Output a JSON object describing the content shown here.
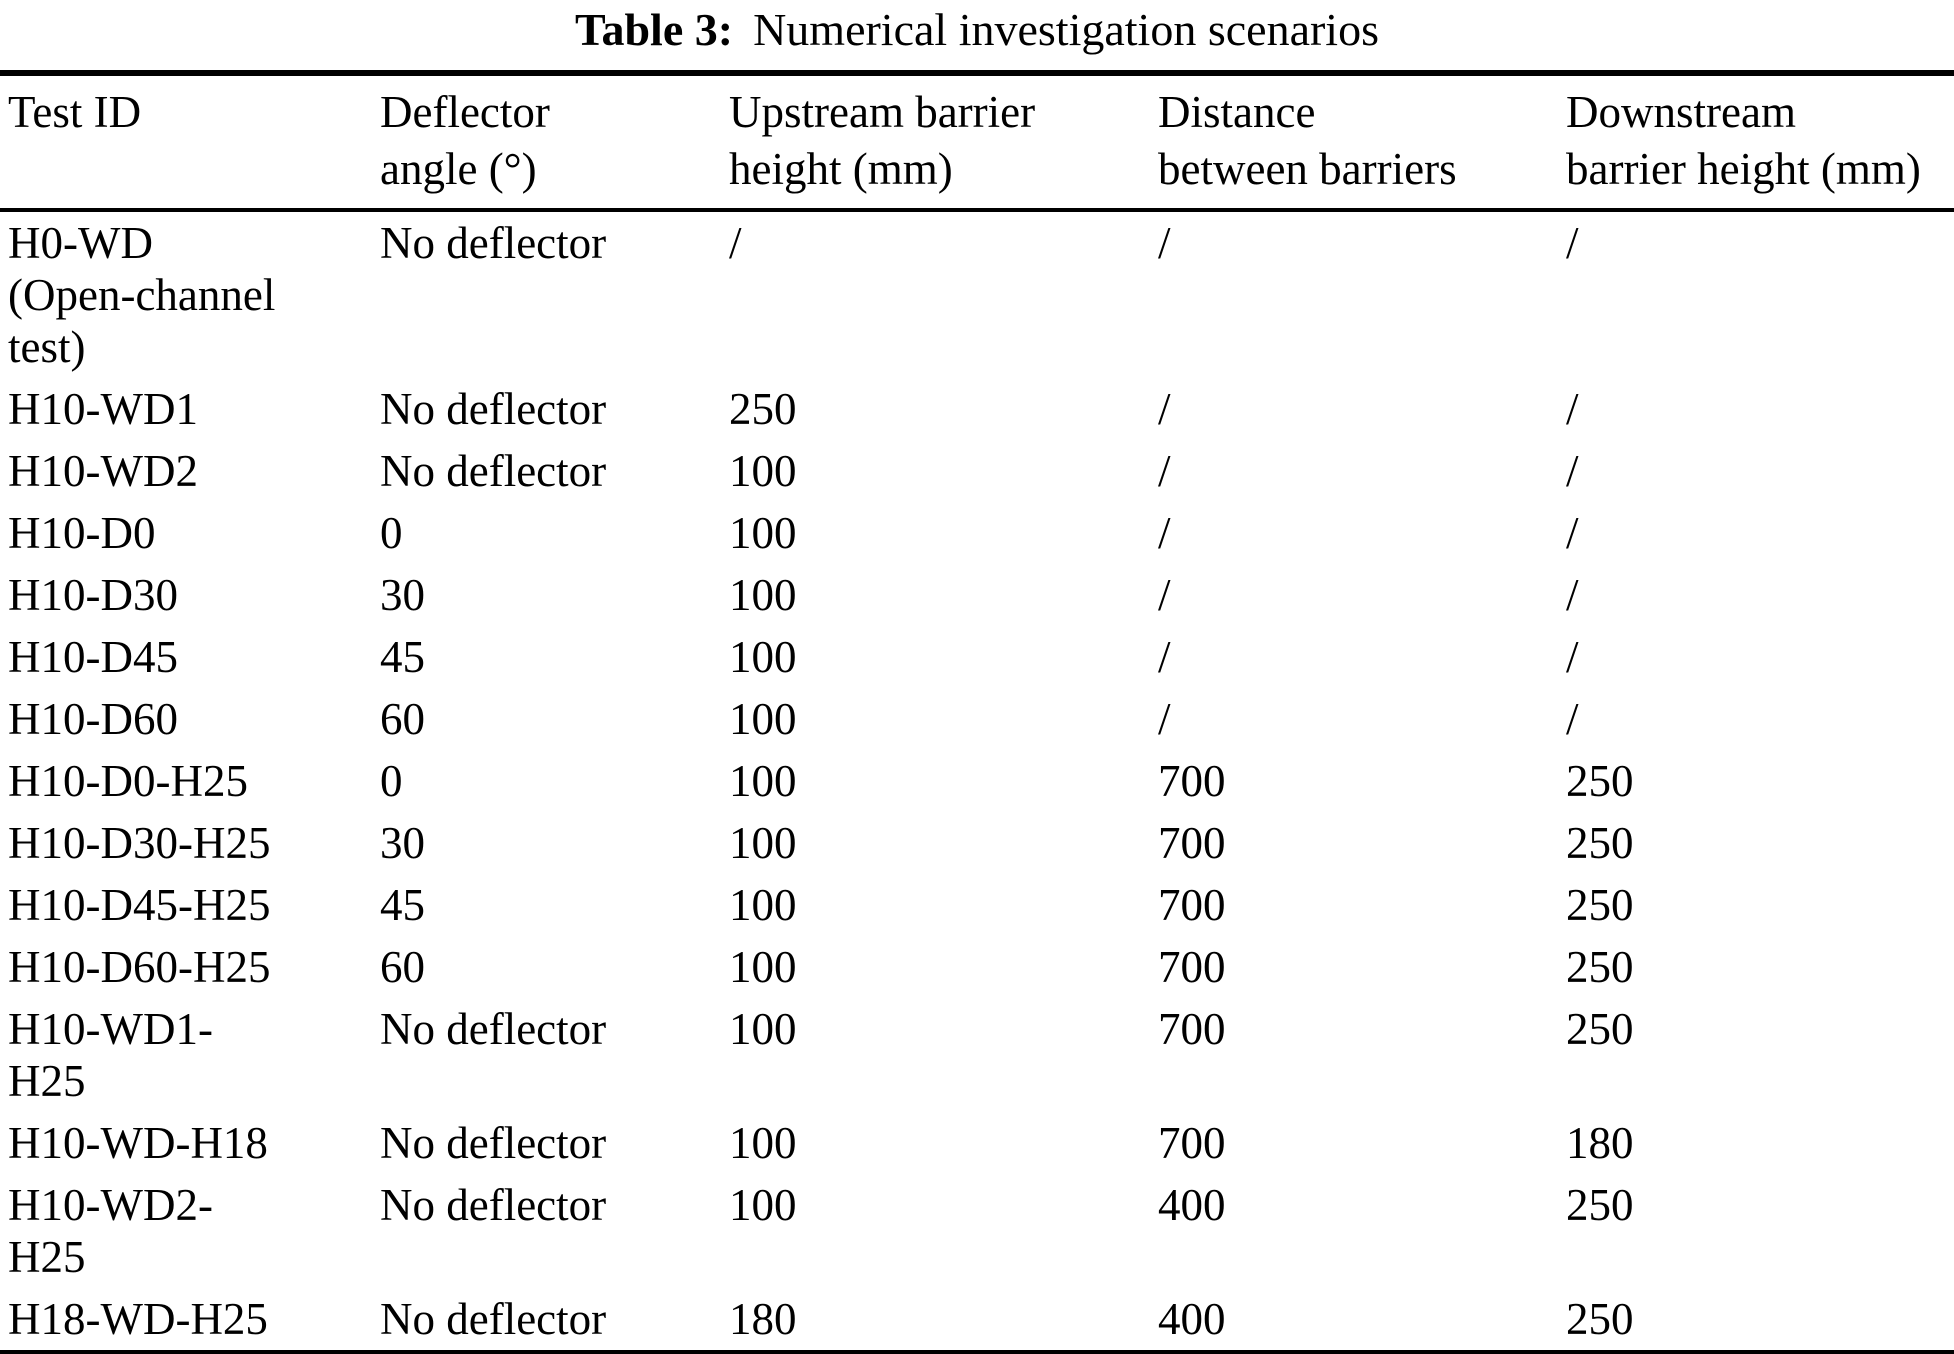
{
  "caption": {
    "label": "Table 3:",
    "text": "Numerical investigation scenarios"
  },
  "table": {
    "columns": [
      {
        "label": "Test ID"
      },
      {
        "label": "Deflector\nangle (°)"
      },
      {
        "label": "Upstream barrier\nheight (mm)"
      },
      {
        "label": "Distance\nbetween barriers"
      },
      {
        "label": "Downstream\nbarrier height (mm)"
      }
    ],
    "rows": [
      [
        "H0-WD\n(Open-channel\ntest)",
        "No deflector",
        "/",
        "/",
        "/"
      ],
      [
        "H10-WD1",
        "No deflector",
        "250",
        "/",
        "/"
      ],
      [
        "H10-WD2",
        "No deflector",
        "100",
        "/",
        "/"
      ],
      [
        "H10-D0",
        "0",
        "100",
        "/",
        "/"
      ],
      [
        "H10-D30",
        "30",
        "100",
        "/",
        "/"
      ],
      [
        "H10-D45",
        "45",
        "100",
        "/",
        "/"
      ],
      [
        "H10-D60",
        "60",
        "100",
        "/",
        "/"
      ],
      [
        "H10-D0-H25",
        "0",
        "100",
        "700",
        "250"
      ],
      [
        "H10-D30-H25",
        "30",
        "100",
        "700",
        "250"
      ],
      [
        "H10-D45-H25",
        "45",
        "100",
        "700",
        "250"
      ],
      [
        "H10-D60-H25",
        "60",
        "100",
        "700",
        "250"
      ],
      [
        "H10-WD1-\nH25",
        "No deflector",
        "100",
        "700",
        "250"
      ],
      [
        "H10-WD-H18",
        "No deflector",
        "100",
        "700",
        "180"
      ],
      [
        "H10-WD2-\nH25",
        "No deflector",
        "100",
        "400",
        "250"
      ],
      [
        "H18-WD-H25",
        "No deflector",
        "180",
        "400",
        "250"
      ]
    ]
  },
  "colors": {
    "text": "#000000",
    "background": "#ffffff",
    "rule": "#000000"
  }
}
